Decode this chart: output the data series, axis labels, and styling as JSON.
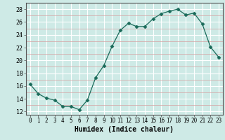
{
  "x": [
    0,
    1,
    2,
    3,
    4,
    5,
    6,
    7,
    8,
    9,
    10,
    11,
    12,
    13,
    14,
    15,
    16,
    17,
    18,
    19,
    20,
    21,
    22,
    23
  ],
  "y": [
    16.3,
    14.8,
    14.1,
    13.8,
    12.8,
    12.8,
    12.3,
    13.8,
    17.3,
    19.2,
    22.2,
    24.7,
    25.8,
    25.3,
    25.3,
    26.5,
    27.3,
    27.7,
    28.0,
    27.1,
    27.4,
    25.7,
    22.1,
    20.5
  ],
  "line_color": "#1a6b5a",
  "marker": "D",
  "marker_size": 2.5,
  "bg_color": "#ceeae6",
  "grid_color_major": "#ffffff",
  "grid_color_minor": "#e8c8c8",
  "xlabel": "Humidex (Indice chaleur)",
  "xlim": [
    -0.5,
    23.5
  ],
  "ylim": [
    11.5,
    29.0
  ],
  "yticks": [
    12,
    14,
    16,
    18,
    20,
    22,
    24,
    26,
    28
  ],
  "xtick_labels": [
    "0",
    "1",
    "2",
    "3",
    "4",
    "5",
    "6",
    "7",
    "8",
    "9",
    "10",
    "11",
    "12",
    "13",
    "14",
    "15",
    "16",
    "17",
    "18",
    "19",
    "20",
    "21",
    "22",
    "23"
  ]
}
